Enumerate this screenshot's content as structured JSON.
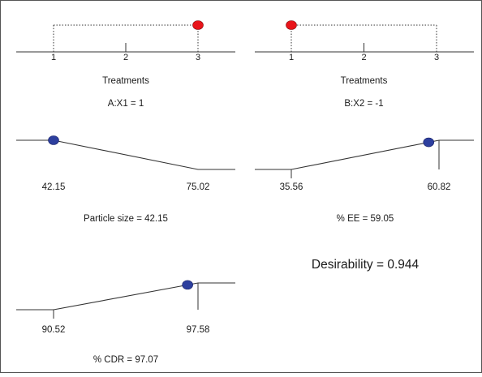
{
  "chart_data": {
    "type": "desirability-ramps",
    "desirability_text": "Desirability = 0.944",
    "panels": [
      {
        "id": "treatments-a",
        "kind": "factor",
        "xlabel": "Treatments",
        "ticks": [
          "1",
          "2",
          "3"
        ],
        "range": [
          1,
          3
        ],
        "value": 3,
        "caption": "A:X1 = 1",
        "marker_color": "#e8141a"
      },
      {
        "id": "treatments-b",
        "kind": "factor",
        "xlabel": "Treatments",
        "ticks": [
          "1",
          "2",
          "3"
        ],
        "range": [
          1,
          3
        ],
        "value": 1,
        "caption": "B:X2 = -1",
        "marker_color": "#e8141a"
      },
      {
        "id": "particle-size",
        "kind": "response",
        "goal": "minimize",
        "low": 42.15,
        "high": 75.02,
        "low_label": "42.15",
        "high_label": "75.02",
        "value": 42.15,
        "caption": "Particle size = 42.15",
        "marker_color": "#2d3f9e"
      },
      {
        "id": "entrapment-efficiency",
        "kind": "response",
        "goal": "maximize",
        "low": 35.56,
        "high": 60.82,
        "low_label": "35.56",
        "high_label": "60.82",
        "value": 59.05,
        "caption": "% EE = 59.05",
        "marker_color": "#2d3f9e"
      },
      {
        "id": "cumulative-drug-release",
        "kind": "response",
        "goal": "maximize",
        "low": 90.52,
        "high": 97.58,
        "low_label": "90.52",
        "high_label": "97.58",
        "value": 97.07,
        "caption": "% CDR = 97.07",
        "marker_color": "#2d3f9e"
      }
    ]
  }
}
